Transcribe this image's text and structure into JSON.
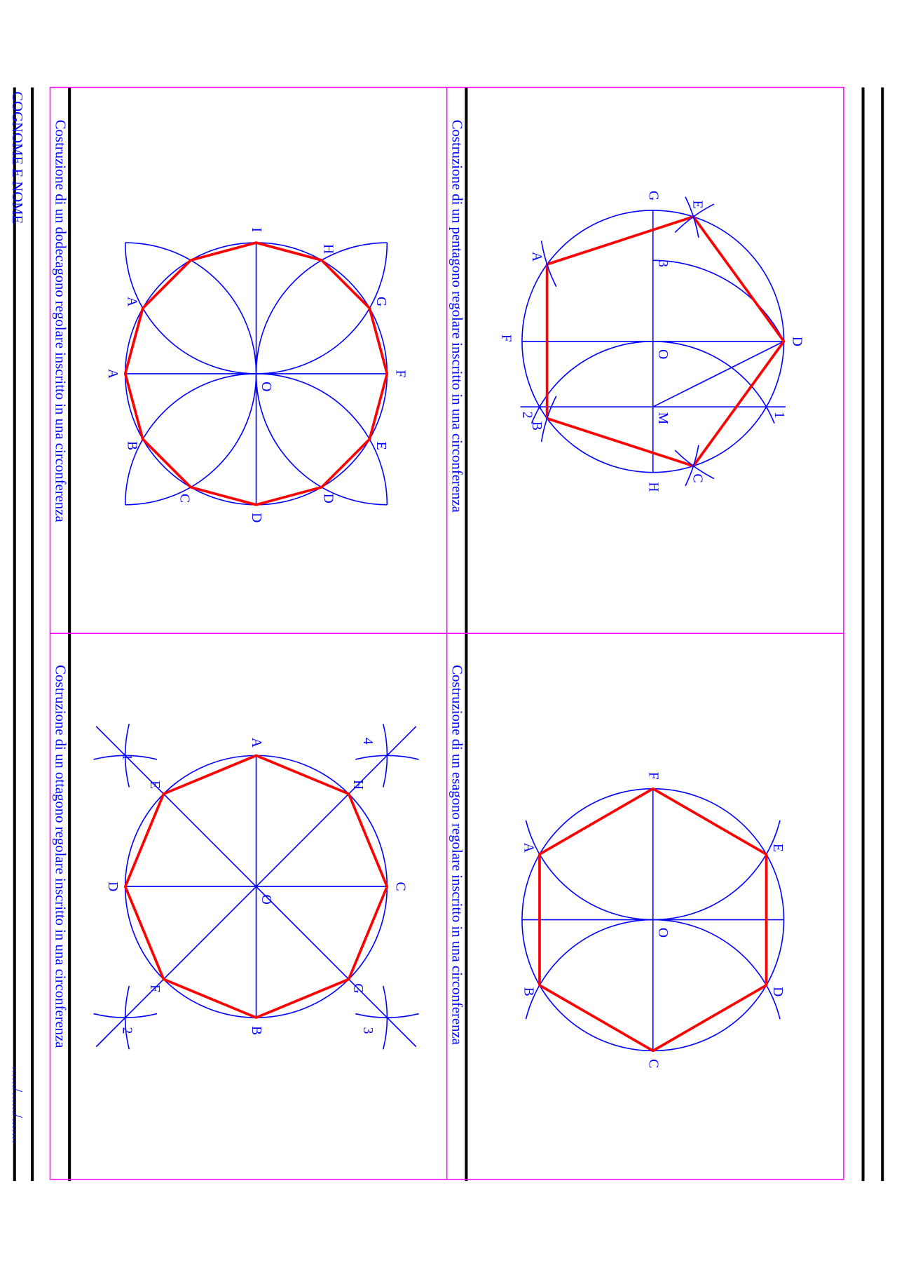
{
  "header": {
    "name_label": "COGNOME E NOME",
    "date_placeholder": "....../....../......."
  },
  "colors": {
    "construction": "#0000ff",
    "polygon": "#ff0000",
    "frame": "#ff00ff",
    "rules": "#000000"
  },
  "panels": [
    {
      "id": "pentagon",
      "title": "Costruzione di  un pentagono regolare inscritto in una circonferenza",
      "vertex_labels": [
        "D",
        "E",
        "A",
        "B",
        "C"
      ],
      "point_labels": {
        "G": "G",
        "H": "H",
        "F": "F",
        "O": "O",
        "M": "M",
        "p1": "1",
        "p2": "2",
        "p3": "3"
      }
    },
    {
      "id": "hexagon",
      "title": "Costruzione di  un esagono regolare inscritto in una circonferenza",
      "vertex_labels": [
        "F",
        "E",
        "D",
        "C",
        "B",
        "A"
      ],
      "point_labels": {
        "O": "O"
      }
    },
    {
      "id": "dodecagon",
      "title": "Costruzione di  un dodecagono regolare inscritto in una circonferenza",
      "vertex_labels": [
        "I",
        "H",
        "G",
        "F",
        "E",
        "D",
        "D",
        "C",
        "B",
        "A",
        "A",
        ""
      ],
      "point_labels": {
        "O": "O"
      }
    },
    {
      "id": "octagon",
      "title": "Costruzione di  un ottagono regolare inscritto in una circonferenza",
      "vertex_labels": [
        "A",
        "H",
        "C",
        "G",
        "B",
        "F",
        "D",
        "E"
      ],
      "point_labels": {
        "O": "O",
        "p1": "1",
        "p2": "2",
        "p3": "3",
        "p4": "4"
      }
    }
  ]
}
